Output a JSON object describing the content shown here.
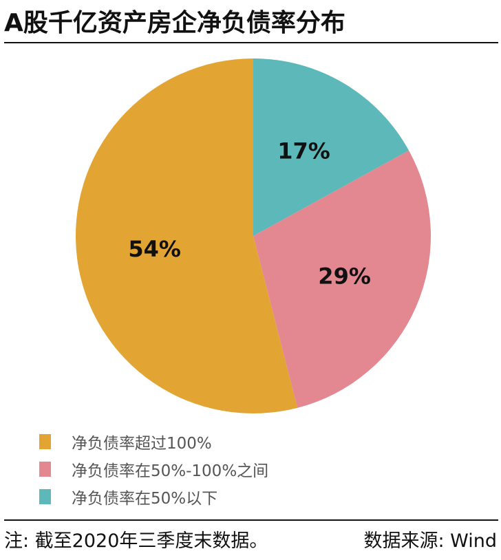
{
  "title": "A股千亿资产房企净负债率分布",
  "chart_data": {
    "type": "pie",
    "title": "A股千亿资产房企净负债率分布",
    "slices": [
      {
        "name": "净负债率在50%以下",
        "value": 17,
        "label": "17%",
        "color": "#5DB8B9"
      },
      {
        "name": "净负债率在50%-100%之间",
        "value": 29,
        "label": "29%",
        "color": "#E38891"
      },
      {
        "name": "净负债率超过100%",
        "value": 54,
        "label": "54%",
        "color": "#E2A432"
      }
    ],
    "start_angle": "12 o'clock",
    "direction": "clockwise",
    "legend": {
      "placement": "bottom-left",
      "entries": [
        "净负债率超过100%",
        "净负债率在50%-100%之间",
        "净负债率在50%以下"
      ],
      "colors": [
        "#E2A432",
        "#E38891",
        "#5DB8B9"
      ]
    }
  },
  "footer": {
    "note": "注: 截至2020年三季度末数据。",
    "source": "数据来源: Wind"
  }
}
